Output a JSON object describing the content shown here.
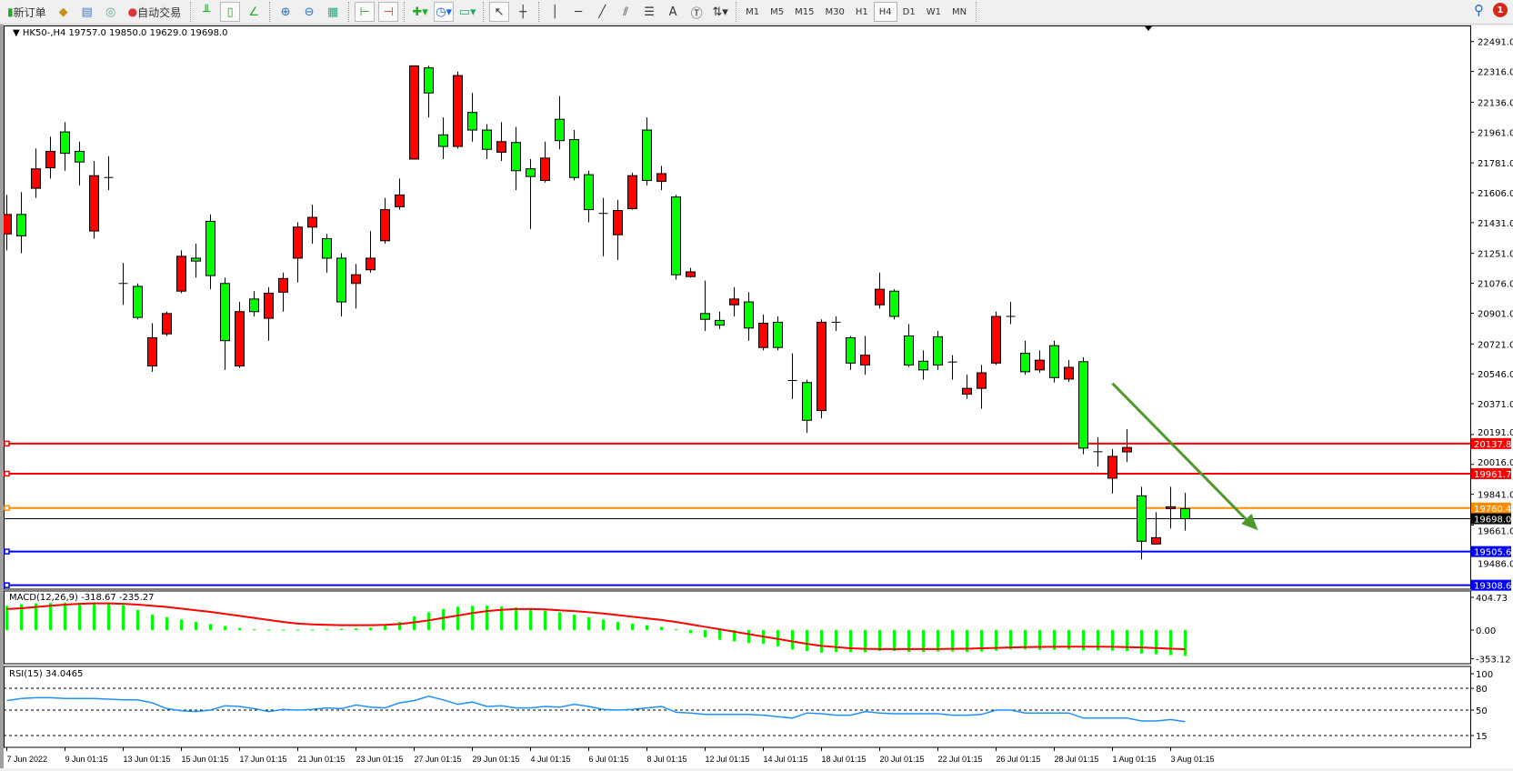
{
  "toolbar": {
    "new_order": "新订单",
    "auto_trading": "自动交易",
    "icons": [
      "new-order-icon",
      "gold-icon",
      "market-watch-icon",
      "signal-icon",
      "auto-trading-icon",
      "bar-chart-icon",
      "candlestick-icon",
      "line-chart-icon",
      "zoom-in-icon",
      "zoom-out-icon",
      "tile-windows-icon",
      "auto-scroll-icon",
      "chart-shift-icon",
      "indicators-icon",
      "periods-icon",
      "templates-icon",
      "cursor-icon",
      "crosshair-icon",
      "vertical-line-icon",
      "horizontal-line-icon",
      "trendline-icon",
      "fibonacci-icon",
      "fibo-fan-icon",
      "text-icon",
      "text-label-icon",
      "arrows-icon"
    ],
    "timeframes": [
      "M1",
      "M5",
      "M15",
      "M30",
      "H1",
      "H4",
      "D1",
      "W1",
      "MN"
    ],
    "active_timeframe": "H4",
    "notification_count": "1"
  },
  "chart": {
    "header": "HK50-,H4  19757.0 19850.0 19629.0 19698.0",
    "symbol": "HK50-",
    "period": "H4",
    "colors": {
      "bull": "#ff0000",
      "bear": "#00ff00",
      "outline": "#000000",
      "resistance": "#ff0000",
      "orange": "#ff8c00",
      "support": "#0000ff",
      "arrow": "#4f9a2d",
      "macd_hist": "#00ff00",
      "macd_signal": "#ff0000",
      "rsi": "#1e90ff"
    },
    "price_ticks": [
      "22491.0",
      "22316.0",
      "22136.0",
      "21961.0",
      "21781.0",
      "21606.0",
      "21431.0",
      "21251.0",
      "21076.0",
      "20901.0",
      "20721.0",
      "20546.0",
      "20371.0",
      "20191.0",
      "20016.0",
      "19841.0",
      "19661.0",
      "19486.0"
    ],
    "levels": [
      {
        "price": "20137.8",
        "color": "#ff0000"
      },
      {
        "price": "19961.7",
        "color": "#ff0000"
      },
      {
        "price": "19760.4",
        "color": "#ff8c00"
      },
      {
        "price": "19505.6",
        "color": "#0000ff"
      },
      {
        "price": "19308.6",
        "color": "#0000ff"
      }
    ],
    "current_price": "19698.0",
    "trend_arrow": {
      "from": {
        "bar": 76,
        "price": 20490
      },
      "to": {
        "bar": 86,
        "price": 19630
      }
    },
    "time_labels": [
      "7 Jun 2022",
      "9 Jun 01:15",
      "13 Jun 01:15",
      "15 Jun 01:15",
      "17 Jun 01:15",
      "21 Jun 01:15",
      "23 Jun 01:15",
      "27 Jun 01:15",
      "29 Jun 01:15",
      "4 Jul 01:15",
      "6 Jul 01:15",
      "8 Jul 01:15",
      "12 Jul 01:15",
      "14 Jul 01:15",
      "18 Jul 01:15",
      "20 Jul 01:15",
      "22 Jul 01:15",
      "26 Jul 01:15",
      "28 Jul 01:15",
      "1 Aug 01:15",
      "3 Aug 01:15"
    ],
    "ohlc": [
      [
        21365,
        21593,
        21269,
        21479
      ],
      [
        21479,
        21610,
        21252,
        21354
      ],
      [
        21632,
        21865,
        21576,
        21746
      ],
      [
        21752,
        21934,
        21689,
        21848
      ],
      [
        21962,
        22019,
        21735,
        21837
      ],
      [
        21848,
        21905,
        21649,
        21786
      ],
      [
        21382,
        21792,
        21337,
        21706
      ],
      [
        21695,
        21820,
        21621,
        21695
      ],
      [
        21075,
        21195,
        20950,
        21075
      ],
      [
        21058,
        21075,
        20865,
        20876
      ],
      [
        20592,
        20842,
        20558,
        20757
      ],
      [
        20780,
        20910,
        20768,
        20899
      ],
      [
        21030,
        21269,
        21018,
        21234
      ],
      [
        21223,
        21308,
        21109,
        21206
      ],
      [
        21439,
        21479,
        21041,
        21121
      ],
      [
        21075,
        21109,
        20569,
        20740
      ],
      [
        20592,
        20967,
        20581,
        20910
      ],
      [
        20984,
        21030,
        20882,
        20910
      ],
      [
        20871,
        21053,
        20740,
        21018
      ],
      [
        21024,
        21138,
        20910,
        21104
      ],
      [
        21223,
        21433,
        21081,
        21405
      ],
      [
        21405,
        21536,
        21308,
        21462
      ],
      [
        21337,
        21365,
        21138,
        21223
      ],
      [
        21223,
        21252,
        20882,
        20967
      ],
      [
        21075,
        21189,
        20928,
        21126
      ],
      [
        21155,
        21382,
        21138,
        21223
      ],
      [
        21325,
        21576,
        21308,
        21507
      ],
      [
        21524,
        21689,
        21507,
        21593
      ],
      [
        21803,
        22349,
        21803,
        22349
      ],
      [
        22337,
        22349,
        22047,
        22190
      ],
      [
        21945,
        22047,
        21803,
        21877
      ],
      [
        21877,
        22315,
        21865,
        22292
      ],
      [
        22076,
        22190,
        21905,
        21973
      ],
      [
        21973,
        22008,
        21803,
        21860
      ],
      [
        21843,
        22019,
        21792,
        21905
      ],
      [
        21900,
        21991,
        21621,
        21735
      ],
      [
        21746,
        21803,
        21394,
        21701
      ],
      [
        21678,
        21905,
        21666,
        21809
      ],
      [
        22036,
        22172,
        21860,
        21911
      ],
      [
        21917,
        21973,
        21678,
        21695
      ],
      [
        21712,
        21735,
        21433,
        21507
      ],
      [
        21485,
        21576,
        21234,
        21485
      ],
      [
        21360,
        21564,
        21212,
        21502
      ],
      [
        21513,
        21723,
        21507,
        21706
      ],
      [
        21973,
        22047,
        21649,
        21678
      ],
      [
        21672,
        21763,
        21621,
        21718
      ],
      [
        21581,
        21593,
        21098,
        21126
      ],
      [
        21115,
        21166,
        21109,
        21143
      ],
      [
        20899,
        21092,
        20797,
        20865
      ],
      [
        20859,
        20910,
        20808,
        20831
      ],
      [
        20950,
        21053,
        20882,
        20984
      ],
      [
        20967,
        21024,
        20740,
        20814
      ],
      [
        20700,
        20893,
        20683,
        20842
      ],
      [
        20848,
        20882,
        20683,
        20700
      ],
      [
        20507,
        20666,
        20399,
        20507
      ],
      [
        20495,
        20512,
        20200,
        20274
      ],
      [
        20331,
        20865,
        20285,
        20848
      ],
      [
        20848,
        20882,
        20797,
        20848
      ],
      [
        20757,
        20768,
        20569,
        20609
      ],
      [
        20598,
        20768,
        20541,
        20655
      ],
      [
        20950,
        21138,
        20928,
        21041
      ],
      [
        21030,
        21041,
        20865,
        20882
      ],
      [
        20768,
        20837,
        20586,
        20598
      ],
      [
        20620,
        20683,
        20512,
        20569
      ],
      [
        20763,
        20797,
        20569,
        20598
      ],
      [
        20615,
        20655,
        20512,
        20615
      ],
      [
        20427,
        20541,
        20399,
        20461
      ],
      [
        20461,
        20598,
        20342,
        20552
      ],
      [
        20609,
        20910,
        20598,
        20882
      ],
      [
        20882,
        20967,
        20837,
        20882
      ],
      [
        20666,
        20740,
        20541,
        20558
      ],
      [
        20569,
        20683,
        20552,
        20626
      ],
      [
        20711,
        20740,
        20495,
        20524
      ],
      [
        20515,
        20627,
        20499,
        20584
      ],
      [
        20617,
        20643,
        20076,
        20111
      ],
      [
        20090,
        20175,
        20004,
        20084
      ],
      [
        19935,
        20106,
        19846,
        20063
      ],
      [
        20089,
        20222,
        20030,
        20115
      ],
      [
        19832,
        19885,
        19460,
        19566
      ],
      [
        19550,
        19736,
        19550,
        19587
      ],
      [
        19757,
        19885,
        19641,
        19768
      ],
      [
        19757,
        19850,
        19629,
        19698
      ]
    ]
  },
  "macd": {
    "label": "MACD(12,26,9) -318.67 -235.27",
    "ticks": [
      "404.73",
      "0.00",
      "-353.12"
    ],
    "hist": [
      300,
      320,
      330,
      335,
      340,
      335,
      330,
      320,
      310,
      250,
      190,
      160,
      130,
      100,
      75,
      50,
      25,
      10,
      5,
      5,
      5,
      5,
      10,
      15,
      20,
      30,
      60,
      100,
      170,
      220,
      260,
      290,
      300,
      300,
      290,
      280,
      260,
      240,
      220,
      190,
      160,
      130,
      100,
      80,
      60,
      40,
      10,
      -40,
      -90,
      -120,
      -140,
      -160,
      -170,
      -200,
      -240,
      -260,
      -280,
      -270,
      -270,
      -275,
      -260,
      -260,
      -270,
      -270,
      -265,
      -265,
      -270,
      -265,
      -255,
      -240,
      -240,
      -245,
      -245,
      -240,
      -250,
      -250,
      -255,
      -260,
      -290,
      -300,
      -310,
      -318.67
    ],
    "signal": [
      260,
      270,
      285,
      300,
      315,
      325,
      330,
      330,
      325,
      315,
      300,
      285,
      265,
      245,
      225,
      200,
      175,
      150,
      125,
      100,
      80,
      70,
      65,
      60,
      60,
      60,
      65,
      75,
      95,
      120,
      150,
      180,
      210,
      235,
      250,
      260,
      260,
      255,
      245,
      235,
      220,
      205,
      185,
      165,
      145,
      125,
      100,
      70,
      40,
      10,
      -20,
      -50,
      -80,
      -110,
      -140,
      -170,
      -195,
      -210,
      -225,
      -232,
      -235,
      -235,
      -235,
      -235,
      -235,
      -232,
      -230,
      -225,
      -220,
      -215,
      -210,
      -208,
      -206,
      -205,
      -205,
      -205,
      -206,
      -210,
      -215,
      -222,
      -230,
      -235.27
    ]
  },
  "rsi": {
    "label": "RSI(15) 34.0465",
    "ticks": [
      "100",
      "80",
      "50",
      "15"
    ],
    "levels": [
      80,
      50,
      15
    ],
    "values": [
      63,
      66,
      67,
      67,
      66,
      66,
      66,
      65,
      64,
      64,
      60,
      52,
      49,
      48,
      50,
      56,
      55,
      52,
      48,
      51,
      50,
      51,
      53,
      52,
      57,
      54,
      53,
      60,
      63,
      69,
      64,
      58,
      61,
      55,
      56,
      53,
      53,
      55,
      54,
      58,
      55,
      51,
      50,
      51,
      53,
      55,
      47,
      46,
      44,
      44,
      44,
      44,
      43,
      41,
      39,
      46,
      45,
      43,
      43,
      48,
      46,
      45,
      45,
      45,
      45,
      43,
      43,
      44,
      50,
      50,
      46,
      46,
      46,
      46,
      39,
      39,
      39,
      39,
      35,
      35,
      37,
      34.05
    ]
  }
}
